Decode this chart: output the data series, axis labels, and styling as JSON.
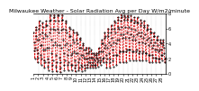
{
  "title": "Milwaukee Weather - Solar Radiation Avg per Day W/m2/minute",
  "line_color": "#dd0000",
  "background_color": "#ffffff",
  "grid_color": "#aaaaaa",
  "y_values": [
    5.5,
    4.2,
    3.1,
    2.0,
    3.5,
    5.0,
    6.2,
    5.8,
    4.5,
    3.2,
    2.1,
    1.5,
    2.8,
    4.5,
    6.0,
    7.0,
    6.5,
    5.2,
    3.8,
    2.5,
    1.2,
    2.0,
    3.8,
    5.5,
    6.8,
    6.2,
    4.8,
    3.2,
    1.8,
    0.8,
    1.5,
    3.2,
    5.2,
    6.5,
    7.0,
    6.5,
    5.0,
    3.5,
    2.0,
    1.0,
    0.5,
    1.5,
    3.5,
    5.5,
    7.0,
    7.8,
    7.2,
    6.0,
    4.5,
    2.8,
    1.2,
    0.4,
    1.8,
    3.8,
    6.0,
    7.5,
    7.8,
    7.0,
    5.8,
    4.2,
    2.5,
    1.0,
    0.3,
    1.5,
    3.8,
    6.0,
    7.8,
    7.8,
    7.0,
    5.5,
    3.8,
    2.2,
    0.8,
    0.2,
    1.5,
    3.5,
    5.8,
    7.2,
    7.8,
    7.2,
    6.0,
    4.5,
    2.8,
    1.2,
    0.5,
    1.8,
    3.8,
    5.8,
    7.0,
    6.8,
    5.5,
    4.0,
    2.5,
    1.2,
    0.5,
    1.5,
    3.2,
    5.0,
    6.2,
    6.0,
    5.0,
    3.8,
    2.5,
    1.2,
    0.5,
    1.2,
    2.8,
    4.5,
    5.8,
    5.5,
    4.2,
    3.0,
    1.8,
    0.8,
    0.3,
    1.2,
    2.8,
    4.5,
    5.5,
    5.2,
    4.0,
    2.8,
    1.5,
    0.5,
    0.8,
    2.0,
    3.5,
    4.8,
    4.5,
    3.5,
    2.5,
    1.2,
    0.4,
    1.0,
    2.5,
    3.8,
    4.0,
    3.2,
    2.2,
    1.2,
    0.5,
    0.8,
    2.0,
    3.2,
    3.5,
    2.8,
    2.0,
    1.2,
    0.8,
    1.5,
    2.8,
    3.5,
    3.0,
    2.2,
    1.5,
    0.8,
    1.2,
    2.2,
    3.2,
    2.8,
    2.2,
    1.5,
    0.8,
    1.2,
    2.0,
    2.8,
    2.5,
    1.8,
    1.2,
    0.8,
    1.2,
    2.2,
    2.8,
    2.5,
    2.0,
    1.5,
    1.0,
    1.8,
    2.8,
    3.5,
    3.0,
    2.2,
    1.5,
    1.2,
    1.8,
    3.0,
    4.0,
    4.5,
    4.0,
    3.0,
    2.0,
    1.5,
    2.2,
    3.5,
    4.8,
    5.5,
    5.0,
    3.8,
    2.5,
    1.5,
    0.8,
    2.0,
    3.5,
    5.0,
    6.0,
    5.5,
    4.2,
    2.8,
    1.5,
    0.8,
    2.0,
    3.8,
    5.5,
    6.5,
    6.0,
    4.8,
    3.2,
    1.8,
    1.0,
    2.5,
    4.2,
    6.0,
    7.0,
    6.8,
    5.5,
    4.0,
    2.5,
    1.2,
    2.5,
    4.5,
    6.2,
    7.5,
    7.2,
    6.0,
    4.5,
    3.0,
    1.5,
    3.0,
    5.2,
    7.0,
    7.8,
    7.5,
    6.2,
    4.8,
    3.0,
    1.5,
    3.0,
    5.2,
    7.2,
    7.8,
    7.5,
    6.2,
    4.8,
    3.0,
    1.5,
    3.2,
    5.5,
    7.2,
    7.8,
    7.5,
    6.2,
    4.8,
    3.2,
    1.8,
    3.2,
    5.2,
    7.0,
    7.8,
    7.2,
    6.0,
    4.5,
    3.0,
    1.8,
    3.0,
    5.0,
    6.8,
    7.5,
    7.0,
    5.8,
    4.5,
    3.0,
    1.8,
    3.2,
    5.2,
    6.8,
    7.5,
    6.8,
    5.5,
    4.2,
    2.8,
    1.8,
    3.0,
    5.0,
    6.5,
    7.2,
    6.8,
    5.5,
    4.2,
    2.8,
    1.8,
    3.0,
    4.8,
    6.2,
    7.0,
    6.5,
    5.2,
    4.0,
    2.8,
    1.8,
    2.8,
    4.5,
    5.8,
    6.5,
    6.0,
    4.8,
    3.8,
    2.5,
    1.5,
    2.5,
    4.2,
    5.5,
    6.0,
    5.5,
    4.5,
    3.5,
    2.5,
    1.5,
    2.2,
    3.8,
    5.0,
    5.5,
    5.0,
    4.2,
    3.2,
    2.2,
    1.5,
    2.0,
    3.2,
    4.5,
    5.0,
    4.5,
    3.8,
    3.0,
    2.0,
    1.5,
    2.0,
    3.2,
    4.2,
    4.5,
    4.0,
    3.2,
    2.5,
    1.8,
    2.5,
    3.8,
    4.5,
    4.2,
    3.5,
    2.8,
    2.0,
    1.5,
    2.2
  ],
  "ylim": [
    0,
    8
  ],
  "ytick_labels": [
    "0",
    "2",
    "4",
    "6",
    "8"
  ],
  "ytick_values": [
    0,
    2,
    4,
    6,
    8
  ],
  "n_vgrid": 28,
  "title_fontsize": 4.5,
  "tick_fontsize": 3.5
}
